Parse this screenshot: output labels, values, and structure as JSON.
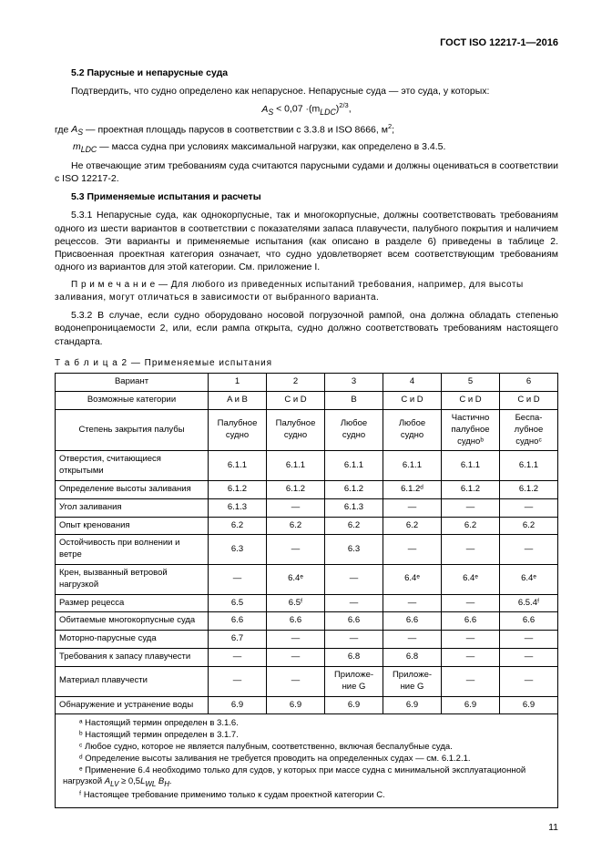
{
  "doc_id": "ГОСТ ISO 12217-1—2016",
  "s52_heading": "5.2  Парусные и непарусные суда",
  "s52_p1": "Подтвердить, что судно определено как непарусное. Непарусные суда — это суда, у которых:",
  "formula_left": "A",
  "formula_sub1": "S",
  "formula_mid": " < 0,07 ·(m",
  "formula_sub2": "LDC",
  "formula_right": ")",
  "formula_exp": "2/3",
  "formula_comma": ",",
  "s52_where_line": "где A_S — проектная площадь парусов в соответствии с 3.3.8 и ISO 8666, м²;",
  "s52_where_line2_pre": "      m",
  "s52_where_line2_sub": "LDC",
  "s52_where_line2_post": " — масса судна при условиях максимальной нагрузки, как определено в 3.4.5.",
  "s52_p2": "Не отвечающие этим требованиям суда считаются парусными судами и должны оцениваться в соответствии с ISO 12217-2.",
  "s53_heading": "5.3  Применяемые испытания и расчеты",
  "s531": "5.3.1  Непарусные суда, как однокорпусные, так и многокорпусные, должны соответствовать требованиям одного из шести вариантов в соответствии с показателями запаса плавучести, палубного покрытия и наличием рецессов. Эти варианты и применяемые испытания (как описано в разделе 6) приведены в таблице 2. Присвоенная проектная категория означает, что судно удовлетворяет всем соответствующим требованиям одного из вариантов для этой категории. См. приложение I.",
  "s53_note": "П р и м е ч а н и е   —  Для любого из приведенных испытаний требования, например, для высоты заливания, могут отличаться в зависимости от выбранного варианта.",
  "s532": "5.3.2  В случае, если судно оборудовано носовой погрузочной рампой, она должна обладать степенью водонепроницаемости 2, или, если рампа открыта, судно должно соответствовать требованиям настоящего стандарта.",
  "table_caption": "Т а б л и ц а   2 — Применяемые испытания",
  "head_variant": "Вариант",
  "head_cats": "Возможные категории",
  "head_deck": "Степень закрытия палубы",
  "cols_variant": [
    "1",
    "2",
    "3",
    "4",
    "5",
    "6"
  ],
  "cols_cats": [
    "A и B",
    "C и D",
    "B",
    "C и D",
    "C и D",
    "C и D"
  ],
  "cols_deck": [
    "Палубное судно",
    "Палубное судно",
    "Любое судно",
    "Любое судно",
    "Частично палубное судноᵇ",
    "Беспа­лубное судноᶜ"
  ],
  "rows": [
    {
      "label": "Отверстия, считающиеся открытыми",
      "v": [
        "6.1.1",
        "6.1.1",
        "6.1.1",
        "6.1.1",
        "6.1.1",
        "6.1.1"
      ]
    },
    {
      "label": "Определение высоты заливания",
      "v": [
        "6.1.2",
        "6.1.2",
        "6.1.2",
        "6.1.2ᵈ",
        "6.1.2",
        "6.1.2"
      ]
    },
    {
      "label": "Угол заливания",
      "v": [
        "6.1.3",
        "—",
        "6.1.3",
        "—",
        "—",
        "—"
      ]
    },
    {
      "label": "Опыт кренования",
      "v": [
        "6.2",
        "6.2",
        "6.2",
        "6.2",
        "6.2",
        "6.2"
      ]
    },
    {
      "label": "Остойчивость при волнении и ветре",
      "v": [
        "6.3",
        "—",
        "6.3",
        "—",
        "—",
        "—"
      ]
    },
    {
      "label": "Крен, вызванный ветровой нагрузкой",
      "v": [
        "—",
        "6.4ᵉ",
        "—",
        "6.4ᵉ",
        "6.4ᵉ",
        "6.4ᵉ"
      ]
    },
    {
      "label": "Размер рецесса",
      "v": [
        "6.5",
        "6.5ᶠ",
        "—",
        "—",
        "—",
        "6.5.4ᶠ"
      ]
    },
    {
      "label": "Обитаемые многокорпусные суда",
      "v": [
        "6.6",
        "6.6",
        "6.6",
        "6.6",
        "6.6",
        "6.6"
      ]
    },
    {
      "label": "Моторно-парусные суда",
      "v": [
        "6.7",
        "—",
        "—",
        "—",
        "—",
        "—"
      ]
    },
    {
      "label": "Требования к запасу плавучести",
      "v": [
        "—",
        "—",
        "6.8",
        "6.8",
        "—",
        "—"
      ]
    },
    {
      "label": "Материал плавучести",
      "v": [
        "—",
        "—",
        "Приложе­ние G",
        "Приложе­ние G",
        "—",
        "—"
      ]
    },
    {
      "label": "Обнаружение и устранение воды",
      "v": [
        "6.9",
        "6.9",
        "6.9",
        "6.9",
        "6.9",
        "6.9"
      ]
    }
  ],
  "fn_a": "ᵃ  Настоящий термин определен в 3.1.6.",
  "fn_b": "ᵇ  Настоящий термин определен в 3.1.7.",
  "fn_c": "ᶜ  Любое судно, которое не является палубным, соответственно, включая беспалубные суда.",
  "fn_d": "ᵈ  Определение высоты заливания не требуется проводить на определенных судах — см. 6.1.2.1.",
  "fn_e_pre": "ᵉ  Применение 6.4 необходимо только для судов, у которых при массе судна с минимальной эксплуатационной нагрузкой ",
  "fn_e_formula": "A_LV ≥ 0,5L_WL B_H.",
  "fn_f": "ᶠ  Настоящее требование применимо только к судам проектной категории C.",
  "page_number": "11"
}
